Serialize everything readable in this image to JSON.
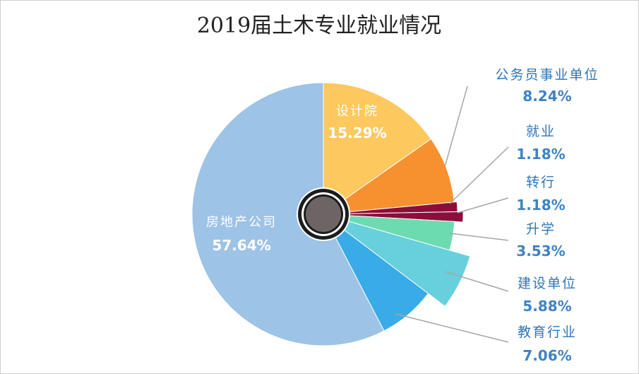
{
  "chart_data": {
    "type": "pie",
    "title": "2019届土木专业就业情况",
    "slices": [
      {
        "name": "设计院",
        "value": 15.29,
        "label": "15.29%",
        "color": "#fdc85e"
      },
      {
        "name": "公务员事业单位",
        "value": 8.24,
        "label": "8.24%",
        "color": "#f7912f"
      },
      {
        "name": "就业",
        "value": 1.18,
        "label": "1.18%",
        "color": "#8b0e3b"
      },
      {
        "name": "转行",
        "value": 1.18,
        "label": "1.18%",
        "color": "#8b0e3b"
      },
      {
        "name": "升学",
        "value": 3.53,
        "label": "3.53%",
        "color": "#6cdcb0"
      },
      {
        "name": "建设单位",
        "value": 5.88,
        "label": "5.88%",
        "color": "#67d0dc"
      },
      {
        "name": "教育行业",
        "value": 7.06,
        "label": "7.06%",
        "color": "#39abe6"
      },
      {
        "name": "房地产公司",
        "value": 57.64,
        "label": "57.64%",
        "color": "#9dc3e6"
      }
    ],
    "center_color": "#6d6565",
    "label_color": "#2e75b6",
    "leader_color": "#a6a6a6"
  }
}
